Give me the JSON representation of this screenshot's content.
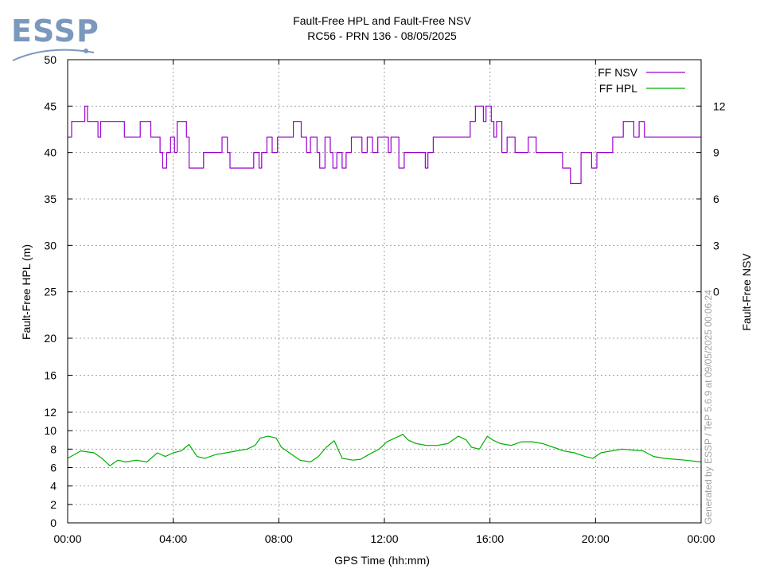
{
  "logo": {
    "text": "ESSP",
    "color": "#7b98bd"
  },
  "credit": "Generated by ESSP / TeP 5.6.9 at 09/05/2025 00:06:24",
  "chart_data": {
    "type": "line",
    "title": "Fault-Free HPL and Fault-Free NSV",
    "subtitle": "RC56 - PRN 136 - 08/05/2025",
    "xlabel": "GPS Time (hh:mm)",
    "ylabel": "Fault-Free HPL (m)",
    "y2label": "Fault-Free NSV",
    "x_unit": "hours",
    "xlim": [
      0,
      24
    ],
    "x_ticks": [
      0,
      4,
      8,
      12,
      16,
      20,
      24
    ],
    "x_tick_labels": [
      "00:00",
      "04:00",
      "08:00",
      "12:00",
      "16:00",
      "20:00",
      "00:00"
    ],
    "ylim": [
      0,
      50
    ],
    "y_ticks": [
      0,
      2,
      4,
      6,
      8,
      10,
      12,
      16,
      20,
      25,
      30,
      35,
      40,
      45,
      50
    ],
    "y2_ticks": [
      0,
      3,
      6,
      9,
      12
    ],
    "y2_ratio": {
      "hpl_at_nsv0": 25,
      "hpl_per_nsv": 1.667
    },
    "grid": true,
    "legend_position": "top-right",
    "series": [
      {
        "name": "FF NSV",
        "color": "#9900cc",
        "axis": "right",
        "step": true,
        "x": [
          0,
          0.15,
          0.65,
          0.75,
          0.85,
          1.15,
          1.25,
          2.05,
          2.15,
          2.75,
          3.15,
          3.5,
          3.6,
          3.75,
          3.9,
          4.05,
          4.15,
          4.5,
          4.6,
          5.15,
          5.75,
          5.85,
          6.05,
          6.15,
          7.05,
          7.25,
          7.35,
          7.55,
          7.75,
          7.95,
          8.15,
          8.55,
          8.85,
          9.05,
          9.2,
          9.45,
          9.55,
          9.75,
          9.95,
          10.05,
          10.2,
          10.4,
          10.55,
          10.75,
          11.15,
          11.35,
          11.55,
          11.75,
          12.15,
          12.25,
          12.55,
          12.75,
          12.85,
          13.05,
          13.25,
          13.55,
          13.65,
          13.85,
          14.5,
          15.15,
          15.25,
          15.45,
          15.75,
          15.85,
          16.05,
          16.15,
          16.25,
          16.45,
          16.65,
          16.95,
          17.25,
          17.45,
          17.65,
          17.75,
          18.15,
          18.55,
          18.75,
          19.05,
          19.45,
          19.65,
          19.85,
          20.05,
          20.25,
          20.65,
          21.05,
          21.45,
          21.65,
          21.85,
          22.25,
          22.45,
          24
        ],
        "values": [
          10,
          11,
          12,
          11,
          11,
          10,
          11,
          11,
          10,
          11,
          10,
          9,
          8,
          9,
          10,
          9,
          11,
          10,
          8,
          9,
          9,
          10,
          9,
          8,
          9,
          8,
          9,
          10,
          9,
          10,
          10,
          11,
          10,
          9,
          10,
          9,
          8,
          10,
          9,
          8,
          9,
          8,
          9,
          10,
          9,
          10,
          9,
          10,
          9,
          10,
          8,
          9,
          9,
          9,
          9,
          8,
          9,
          10,
          10,
          10,
          11,
          12,
          11,
          12,
          11,
          10,
          11,
          9,
          10,
          9,
          9,
          10,
          10,
          9,
          9,
          9,
          8,
          7,
          9,
          9,
          8,
          9,
          9,
          10,
          11,
          10,
          11,
          10,
          10,
          10,
          10
        ]
      },
      {
        "name": "FF HPL",
        "color": "#00b000",
        "axis": "left",
        "step": false,
        "x": [
          0,
          0.5,
          1.0,
          1.3,
          1.6,
          1.9,
          2.2,
          2.6,
          3.0,
          3.4,
          3.7,
          4.0,
          4.3,
          4.6,
          4.9,
          5.2,
          5.6,
          6.0,
          6.4,
          6.8,
          7.1,
          7.3,
          7.6,
          7.9,
          8.1,
          8.5,
          8.8,
          9.2,
          9.5,
          9.8,
          10.1,
          10.4,
          10.8,
          11.1,
          11.4,
          11.8,
          12.1,
          12.4,
          12.7,
          12.9,
          13.2,
          13.6,
          14.0,
          14.4,
          14.8,
          15.1,
          15.3,
          15.6,
          15.9,
          16.1,
          16.4,
          16.8,
          17.2,
          17.6,
          18.0,
          18.4,
          18.8,
          19.2,
          19.6,
          19.9,
          20.2,
          20.6,
          21.0,
          21.4,
          21.8,
          22.2,
          22.6,
          23.0,
          23.4,
          24
        ],
        "values": [
          7.0,
          7.8,
          7.6,
          7.0,
          6.2,
          6.8,
          6.6,
          6.8,
          6.6,
          7.6,
          7.2,
          7.6,
          7.8,
          8.5,
          7.2,
          7.0,
          7.4,
          7.6,
          7.8,
          8.0,
          8.4,
          9.2,
          9.4,
          9.2,
          8.2,
          7.4,
          6.8,
          6.6,
          7.2,
          8.2,
          8.9,
          7.0,
          6.8,
          6.9,
          7.4,
          8.0,
          8.8,
          9.2,
          9.6,
          9.0,
          8.6,
          8.4,
          8.4,
          8.6,
          9.4,
          9.0,
          8.2,
          8.0,
          9.4,
          9.0,
          8.6,
          8.4,
          8.8,
          8.8,
          8.6,
          8.2,
          7.8,
          7.6,
          7.2,
          7.0,
          7.6,
          7.8,
          8.0,
          7.9,
          7.8,
          7.2,
          7.0,
          6.9,
          6.8,
          6.6
        ]
      }
    ]
  }
}
